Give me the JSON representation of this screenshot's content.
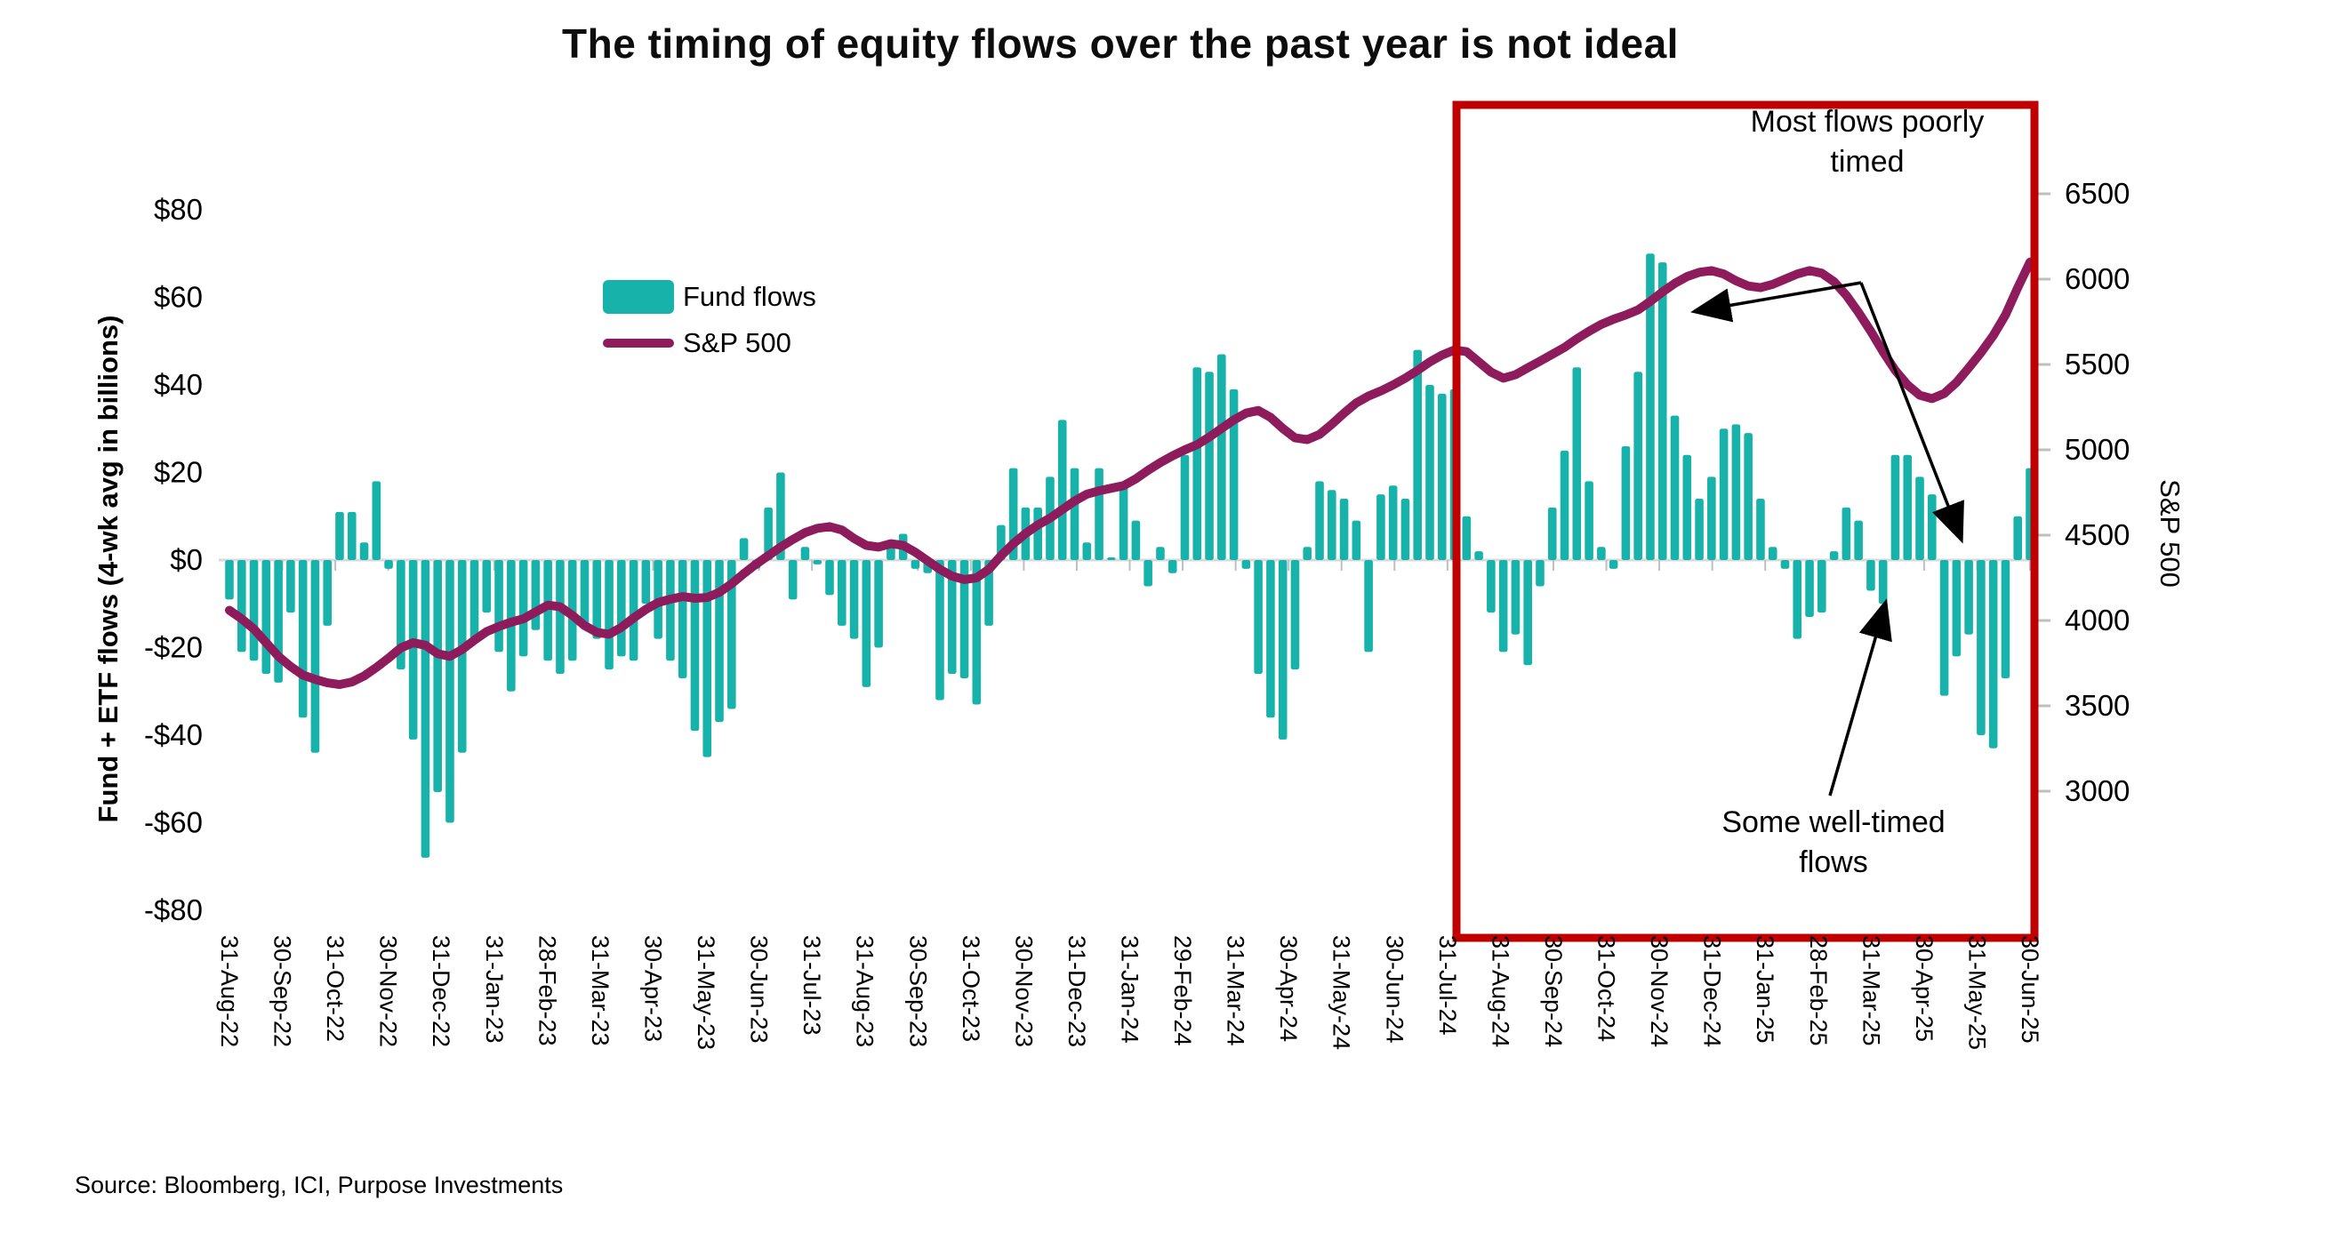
{
  "title": "The timing of equity flows over the past year is not ideal",
  "legend": {
    "fund_flows_label": "Fund flows",
    "sp500_label": "S&P 500"
  },
  "left_axis": {
    "title": "Fund + ETF flows (4-wk avg in billions)",
    "ticks": [
      "$80",
      "$60",
      "$40",
      "$20",
      "$0",
      "-$20",
      "-$40",
      "-$60",
      "-$80"
    ]
  },
  "right_axis": {
    "title": "S&P 500",
    "ticks": [
      "6500",
      "6000",
      "5500",
      "5000",
      "4500",
      "4000",
      "3500",
      "3000"
    ]
  },
  "annotations": {
    "poorly_timed": [
      "Most flows poorly",
      "timed"
    ],
    "well_timed": [
      "Some well-timed",
      "flows"
    ]
  },
  "source": "Source: Bloomberg, ICI, Purpose Investments",
  "colors": {
    "bars": "#17B2AA",
    "line": "#8E1B5B",
    "highlight_box": "#C00000",
    "baseline": "#D9D9D9",
    "tick_marks": "#BFBFBF",
    "text": "#000000"
  },
  "chart_data": {
    "type": "bar",
    "subtype": "weekly bars with overlaid line (dual axis)",
    "title": "The timing of equity flows over the past year is not ideal",
    "xlabel": "",
    "ylabel": "Fund + ETF flows (4-wk avg in billions)",
    "ylabel_right": "S&P 500",
    "ylim_left": [
      -80,
      80
    ],
    "ylim_right": [
      3000,
      6500
    ],
    "grid": false,
    "legend_position": "inside upper-left",
    "highlight_region": "31-Jul-24 through 30-Jun-25 outlined in red",
    "categories": [
      "31-Aug-22",
      "30-Sep-22",
      "31-Oct-22",
      "30-Nov-22",
      "31-Dec-22",
      "31-Jan-23",
      "28-Feb-23",
      "31-Mar-23",
      "30-Apr-23",
      "31-May-23",
      "30-Jun-23",
      "31-Jul-23",
      "31-Aug-23",
      "30-Sep-23",
      "31-Oct-23",
      "30-Nov-23",
      "31-Dec-23",
      "31-Jan-24",
      "29-Feb-24",
      "31-Mar-24",
      "30-Apr-24",
      "31-May-24",
      "30-Jun-24",
      "31-Jul-24",
      "31-Aug-24",
      "30-Sep-24",
      "31-Oct-24",
      "30-Nov-24",
      "31-Dec-24",
      "31-Jan-25",
      "28-Feb-25",
      "31-Mar-25",
      "30-Apr-25",
      "31-May-25",
      "30-Jun-25"
    ],
    "series": [
      {
        "name": "Fund flows",
        "unit": "USD billions, weekly (4-wk avg)",
        "axis": "left",
        "values": [
          -9,
          -21,
          -23,
          -26,
          -28,
          -12,
          -36,
          -44,
          -15,
          11,
          11,
          4,
          18,
          -2,
          -25,
          -41,
          -68,
          -53,
          -60,
          -44,
          -18,
          -12,
          -21,
          -30,
          -22,
          -16,
          -23,
          -26,
          -23,
          -15,
          -18,
          -25,
          -22,
          -23,
          -10,
          -18,
          -23,
          -27,
          -39,
          -45,
          -37,
          -34,
          5,
          -2,
          12,
          20,
          -9,
          3,
          -1,
          -8,
          -15,
          -18,
          -29,
          -20,
          3,
          6,
          -2,
          -3,
          -32,
          -26,
          -27,
          -33,
          -15,
          8,
          21,
          12,
          12,
          19,
          32,
          21,
          4,
          21,
          0,
          17,
          9,
          -6,
          3,
          -3,
          24,
          44,
          43,
          47,
          39,
          -2,
          -26,
          -36,
          -41,
          -25,
          3,
          18,
          16,
          14,
          9,
          -21,
          15,
          17,
          14,
          48,
          40,
          38,
          39,
          10,
          2,
          -12,
          -21,
          -17,
          -24,
          -6,
          12,
          25,
          44,
          18,
          3,
          -2,
          26,
          43,
          70,
          68,
          33,
          24,
          14,
          19,
          30,
          31,
          29,
          14,
          3,
          -2,
          -18,
          -13,
          -12,
          2,
          12,
          9,
          -7,
          -10,
          24,
          24,
          19,
          15,
          -31,
          -22,
          -17,
          -40,
          -43,
          -27,
          10,
          21
        ]
      },
      {
        "name": "S&P 500",
        "unit": "index level (4-wk avg)",
        "axis": "right",
        "values": [
          4060,
          4010,
          3950,
          3870,
          3790,
          3730,
          3680,
          3655,
          3635,
          3625,
          3640,
          3675,
          3725,
          3780,
          3840,
          3870,
          3855,
          3805,
          3790,
          3830,
          3885,
          3935,
          3965,
          3990,
          4010,
          4050,
          4090,
          4080,
          4030,
          3970,
          3930,
          3920,
          3960,
          4015,
          4065,
          4105,
          4125,
          4140,
          4130,
          4135,
          4165,
          4215,
          4275,
          4330,
          4380,
          4430,
          4475,
          4515,
          4540,
          4550,
          4530,
          4480,
          4440,
          4430,
          4450,
          4440,
          4400,
          4350,
          4300,
          4260,
          4240,
          4250,
          4300,
          4380,
          4450,
          4510,
          4560,
          4600,
          4650,
          4700,
          4740,
          4760,
          4775,
          4790,
          4830,
          4880,
          4925,
          4965,
          5000,
          5030,
          5075,
          5125,
          5175,
          5215,
          5230,
          5190,
          5125,
          5070,
          5060,
          5090,
          5150,
          5215,
          5275,
          5315,
          5345,
          5380,
          5420,
          5465,
          5515,
          5555,
          5585,
          5575,
          5515,
          5455,
          5420,
          5440,
          5480,
          5520,
          5560,
          5600,
          5650,
          5695,
          5735,
          5765,
          5790,
          5820,
          5870,
          5925,
          5975,
          6015,
          6040,
          6050,
          6030,
          5990,
          5960,
          5950,
          5970,
          6000,
          6030,
          6050,
          6035,
          5985,
          5905,
          5805,
          5695,
          5575,
          5465,
          5380,
          5320,
          5300,
          5330,
          5395,
          5480,
          5570,
          5670,
          5790,
          5950,
          6100
        ]
      }
    ]
  }
}
